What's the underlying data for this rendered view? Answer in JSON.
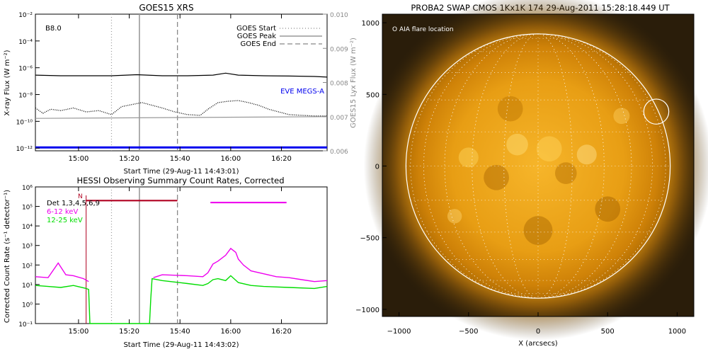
{
  "chart_data": [
    {
      "type": "line",
      "title": "GOES15 XRS",
      "xlabel": "Start Time (29-Aug-11 14:43:01)",
      "ylabel": "X-ray Flux (W m⁻²)",
      "ylabel_right": "GOES15 Lyx Flux (W m⁻²)",
      "class_label": "B8.0",
      "x_ticks": [
        "15:00",
        "15:20",
        "15:40",
        "16:00",
        "16:20"
      ],
      "x_tick_minutes": [
        17,
        37,
        57,
        77,
        97
      ],
      "xlim_minutes": [
        0,
        115
      ],
      "y_ticks": [
        "10⁻²",
        "10⁻⁴",
        "10⁻⁶",
        "10⁻⁸",
        "10⁻¹⁰",
        "10⁻¹²"
      ],
      "y_tick_exponents": [
        -2,
        -4,
        -6,
        -8,
        -10,
        -12
      ],
      "ylim_log10": [
        -12.2,
        -2
      ],
      "y2_ticks": [
        "0.010",
        "0.009",
        "0.008",
        "0.007",
        "0.006"
      ],
      "y2_tick_values": [
        0.01,
        0.009,
        0.008,
        0.007,
        0.006
      ],
      "y2lim": [
        0.006,
        0.01
      ],
      "legend": [
        {
          "label": "GOES Start",
          "style": "dotted"
        },
        {
          "label": "GOES Peak",
          "style": "solid"
        },
        {
          "label": "GOES End",
          "style": "dashed"
        }
      ],
      "markers_minutes": {
        "start": 30,
        "peak": 41,
        "end": 56
      },
      "eve_label": "EVE MEGS-A",
      "series": [
        {
          "name": "GOES long channel",
          "style": "solid",
          "color": "#000000",
          "x": [
            0,
            10,
            20,
            30,
            40,
            50,
            60,
            70,
            75,
            80,
            90,
            100,
            110,
            115
          ],
          "log10y": [
            -6.55,
            -6.6,
            -6.6,
            -6.6,
            -6.52,
            -6.6,
            -6.6,
            -6.55,
            -6.4,
            -6.55,
            -6.6,
            -6.62,
            -6.65,
            -6.7
          ]
        },
        {
          "name": "GOES short channel",
          "style": "dotted",
          "color": "#000000",
          "x": [
            0,
            3,
            6,
            10,
            15,
            20,
            25,
            30,
            34,
            38,
            42,
            46,
            50,
            55,
            60,
            65,
            68,
            72,
            76,
            80,
            84,
            88,
            92,
            96,
            100,
            105,
            110,
            115
          ],
          "log10y": [
            -9.0,
            -9.4,
            -9.1,
            -9.2,
            -9.0,
            -9.3,
            -9.2,
            -9.5,
            -8.9,
            -8.75,
            -8.6,
            -8.8,
            -9.0,
            -9.3,
            -9.5,
            -9.55,
            -9.1,
            -8.6,
            -8.5,
            -8.45,
            -8.6,
            -8.8,
            -9.1,
            -9.3,
            -9.5,
            -9.55,
            -9.6,
            -9.6
          ]
        },
        {
          "name": "GOES15 Lyx Flux",
          "style": "solid",
          "color": "#999999",
          "x": [
            0,
            115
          ],
          "y2": [
            0.00695,
            0.007
          ]
        },
        {
          "name": "EVE MEGS-A",
          "style": "solid",
          "color": "#0000ee",
          "x": [
            0,
            115
          ],
          "log10y": [
            -11.95,
            -11.95
          ]
        }
      ]
    },
    {
      "type": "line",
      "title": "HESSI Observing Summary Count Rates, Corrected",
      "xlabel": "Start Time (29-Aug-11 14:43:02)",
      "ylabel": "Corrected Count Rate (s⁻¹ detector⁻¹)",
      "x_ticks": [
        "15:00",
        "15:20",
        "15:40",
        "16:00",
        "16:20"
      ],
      "x_tick_minutes": [
        17,
        37,
        57,
        77,
        97
      ],
      "xlim_minutes": [
        0,
        115
      ],
      "y_ticks": [
        "10⁶",
        "10⁵",
        "10⁴",
        "10³",
        "10²",
        "10¹",
        "10⁰",
        "10⁻¹"
      ],
      "y_tick_exponents": [
        6,
        5,
        4,
        3,
        2,
        1,
        0,
        -1
      ],
      "ylim_log10": [
        -1,
        6
      ],
      "detectors_label": "Det 1,3,4,5,6,9",
      "night_label": "N",
      "markers_minutes": {
        "start": 30,
        "peak": 41,
        "end": 56
      },
      "bars": [
        {
          "name": "night",
          "color": "#b00020",
          "x0": 20,
          "x1": 56,
          "log10y": 5.3
        },
        {
          "name": "saa",
          "color": "#ee00ee",
          "x0": 69,
          "x1": 99,
          "log10y": 5.2
        }
      ],
      "series": [
        {
          "name": "6-12 keV",
          "color": "#ee00ee",
          "x": [
            0,
            5,
            9,
            12,
            15,
            19,
            21,
            21.5,
            46,
            46.5,
            50,
            60,
            66,
            68,
            70,
            72,
            75,
            77,
            79,
            80,
            82,
            85,
            90,
            95,
            100,
            105,
            110,
            115
          ],
          "log10y": [
            1.4,
            1.35,
            2.1,
            1.5,
            1.45,
            1.3,
            1.15,
            null,
            null,
            1.35,
            1.5,
            1.45,
            1.4,
            1.6,
            2.05,
            2.2,
            2.5,
            2.85,
            2.65,
            2.3,
            2.0,
            1.7,
            1.55,
            1.4,
            1.35,
            1.25,
            1.15,
            1.2
          ]
        },
        {
          "name": "12-25 keV",
          "color": "#00dd00",
          "x": [
            0,
            5,
            10,
            15,
            20,
            21,
            21.5,
            23,
            24,
            45,
            45.5,
            46,
            50,
            60,
            66,
            68,
            70,
            72,
            75,
            77,
            80,
            85,
            90,
            100,
            110,
            115
          ],
          "log10y": [
            0.95,
            0.9,
            0.85,
            0.95,
            0.8,
            0.75,
            -1,
            -1,
            -1,
            -1,
            0.3,
            1.3,
            1.2,
            1.05,
            0.95,
            1.05,
            1.25,
            1.3,
            1.2,
            1.45,
            1.1,
            0.95,
            0.9,
            0.85,
            0.8,
            0.9
          ]
        }
      ]
    },
    {
      "type": "heatmap",
      "title": "PROBA2 SWAP CMOS 1Kx1K 174 29-Aug-2011 15:28:18.449 UT",
      "xlabel": "X (arcsecs)",
      "ylabel": "",
      "annotation": "O AIA flare location",
      "xlim": [
        -1120,
        1120
      ],
      "ylim": [
        -1050,
        1060
      ],
      "x_ticks": [
        "−1000",
        "−500",
        "0",
        "500",
        "1000"
      ],
      "x_tick_values": [
        -1000,
        -500,
        0,
        500,
        1000
      ],
      "y_ticks": [
        "1000",
        "500",
        "0",
        "−500",
        "−1000"
      ],
      "y_tick_values": [
        1000,
        500,
        0,
        -500,
        -1000
      ],
      "solar_radius_arcsec": 950,
      "flare_location_arcsec": {
        "x": 850,
        "y": 380,
        "r": 90
      },
      "colors": {
        "disk": "#d88a10",
        "background": "#2a1d0a",
        "limb": "#ffffff"
      }
    }
  ]
}
